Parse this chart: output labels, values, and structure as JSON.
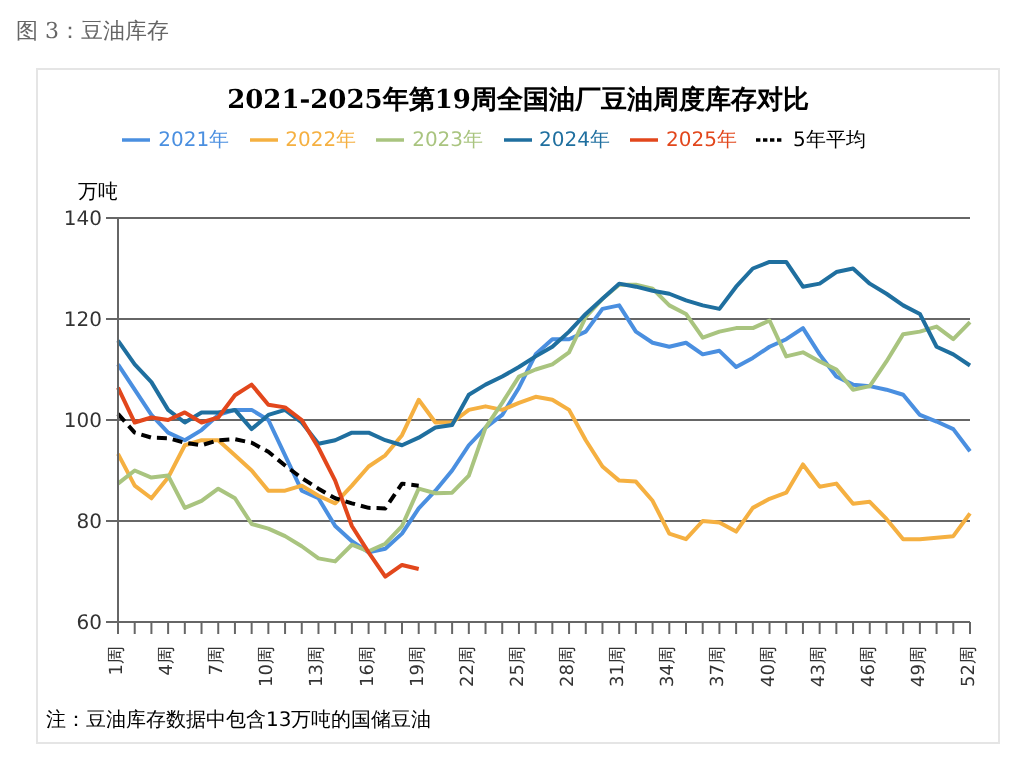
{
  "chart_data": {
    "type": "line",
    "title": "2021-2025年第19周全国油厂豆油周度库存对比",
    "subtitle": "图 3：豆油库存",
    "ylabel": "万吨",
    "annotations": [
      "注：豆油库存数据中包含13万吨的国储豆油"
    ],
    "categories": [
      "1周",
      null,
      null,
      "4周",
      null,
      null,
      "7周",
      null,
      null,
      "10周",
      null,
      null,
      "13周",
      null,
      null,
      "16周",
      null,
      null,
      "19周",
      null,
      null,
      "22周",
      null,
      null,
      "25周",
      null,
      null,
      "28周",
      null,
      null,
      "31周",
      null,
      null,
      "34周",
      null,
      null,
      "37周",
      null,
      null,
      "40周",
      null,
      null,
      "43周",
      null,
      null,
      "46周",
      null,
      null,
      "49周",
      null,
      null,
      "52周"
    ],
    "ylim": [
      60,
      140
    ],
    "yticks": [
      60,
      80,
      100,
      120,
      140
    ],
    "grid": "y",
    "legend": "top",
    "marker": "none",
    "series": [
      {
        "name": "2021年",
        "color": "#4a8fe0",
        "values": [
          111,
          106,
          101,
          97.5,
          96,
          98,
          101,
          102,
          102,
          100,
          93,
          86,
          84.5,
          79,
          76,
          73.8,
          74.5,
          77.5,
          82.5,
          86,
          90,
          95,
          98.5,
          101,
          106.4,
          113,
          116,
          116,
          117.5,
          122,
          122.7,
          117.5,
          115.3,
          114.5,
          115.3,
          113,
          113.7,
          110.5,
          112.3,
          114.5,
          116,
          118.2,
          113,
          108.6,
          107,
          106.7,
          106,
          105,
          101,
          99.7,
          98.2,
          93.8
        ]
      },
      {
        "name": "2022年",
        "color": "#f5b041",
        "values": [
          93.3,
          87,
          84.5,
          88.6,
          95,
          96,
          96,
          93,
          90,
          86,
          86,
          87,
          85,
          83.5,
          87,
          90.8,
          93,
          97,
          104,
          99.5,
          99.5,
          102,
          102.7,
          102,
          103.4,
          104.6,
          104,
          102,
          96,
          90.8,
          88,
          87.8,
          84,
          77.5,
          76.4,
          80,
          79.7,
          77.9,
          82.6,
          84.4,
          85.6,
          91.2,
          86.8,
          87.4,
          83.4,
          83.8,
          80.4,
          76.4,
          76.4,
          76.7,
          77,
          81.5
        ]
      },
      {
        "name": "2023年",
        "color": "#a9c47f",
        "values": [
          87.4,
          90,
          88.6,
          89,
          82.6,
          84,
          86.4,
          84.5,
          79.4,
          78.5,
          77,
          75,
          72.6,
          72,
          75.3,
          74,
          75.5,
          79,
          86.4,
          85.5,
          85.6,
          89,
          98.5,
          103.4,
          108.6,
          110,
          111,
          113.4,
          120.4,
          124,
          126.8,
          126.8,
          126,
          122.7,
          121,
          116.3,
          117.5,
          118.2,
          118.2,
          119.7,
          112.6,
          113.4,
          111.6,
          110,
          106,
          106.7,
          111.6,
          117,
          117.5,
          118.5,
          116,
          119.4
        ]
      },
      {
        "name": "2024年",
        "color": "#1f6f9f",
        "values": [
          115.7,
          111,
          107.5,
          102,
          99.5,
          101.5,
          101.5,
          102,
          98.2,
          101,
          102,
          99.5,
          95.3,
          96,
          97.5,
          97.5,
          96,
          95,
          96.5,
          98.5,
          99,
          105,
          107,
          108.6,
          110.5,
          112.6,
          114.5,
          117.5,
          121,
          124,
          127,
          126.4,
          125.6,
          125,
          123.7,
          122.7,
          122,
          126.4,
          130,
          131.3,
          131.3,
          126.4,
          127,
          129.3,
          130,
          127,
          125,
          122.7,
          121,
          114.5,
          113,
          110.8
        ]
      },
      {
        "name": "2025年",
        "color": "#e2471c",
        "values": [
          106.4,
          99.5,
          100.5,
          100,
          101.5,
          99.5,
          100.5,
          104.9,
          107,
          103,
          102.5,
          100,
          94.5,
          88,
          79,
          73.8,
          69,
          71.3,
          70.5,
          null,
          null,
          null,
          null,
          null,
          null,
          null,
          null,
          null,
          null,
          null,
          null,
          null,
          null,
          null,
          null,
          null,
          null,
          null,
          null,
          null,
          null,
          null,
          null,
          null,
          null,
          null,
          null,
          null,
          null,
          null,
          null,
          null
        ]
      },
      {
        "name": "5年平均",
        "color": "#000000",
        "line_style": "dashed",
        "values": [
          101.2,
          97.5,
          96.5,
          96.4,
          95.5,
          95,
          96,
          96.2,
          95.5,
          93.7,
          91,
          88.5,
          86.4,
          84.5,
          83.5,
          82.6,
          82.5,
          87.4,
          87,
          null,
          null,
          null,
          null,
          null,
          null,
          null,
          null,
          null,
          null,
          null,
          null,
          null,
          null,
          null,
          null,
          null,
          null,
          null,
          null,
          null,
          null,
          null,
          null,
          null,
          null,
          null,
          null,
          null,
          null,
          null,
          null,
          null
        ]
      }
    ]
  }
}
